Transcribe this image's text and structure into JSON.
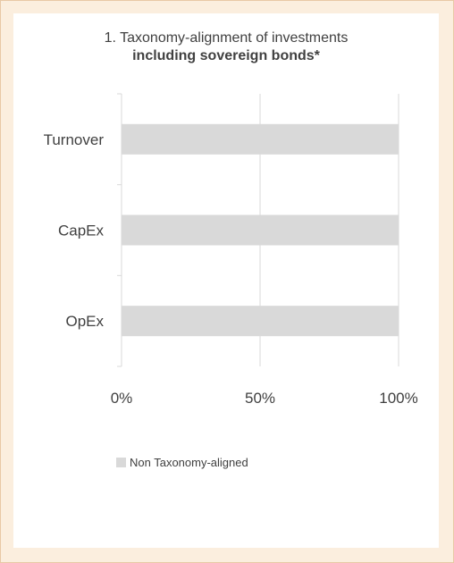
{
  "chart_data": {
    "type": "bar",
    "orientation": "horizontal",
    "title": "1. Taxonomy-alignment of investments",
    "subtitle": "including sovereign bonds*",
    "categories": [
      "Turnover",
      "CapEx",
      "OpEx"
    ],
    "series": [
      {
        "name": "Non Taxonomy-aligned",
        "values": [
          100,
          100,
          100
        ],
        "color": "#d9d9d9"
      }
    ],
    "xlim": [
      0,
      100
    ],
    "xticks": [
      0,
      50,
      100
    ],
    "xtick_labels": [
      "0%",
      "50%",
      "100%"
    ],
    "grid": true,
    "legend_position": "bottom"
  },
  "colors": {
    "background": "#fbeede",
    "panel": "#ffffff",
    "text": "#404040",
    "grid": "#d9d9d9"
  }
}
